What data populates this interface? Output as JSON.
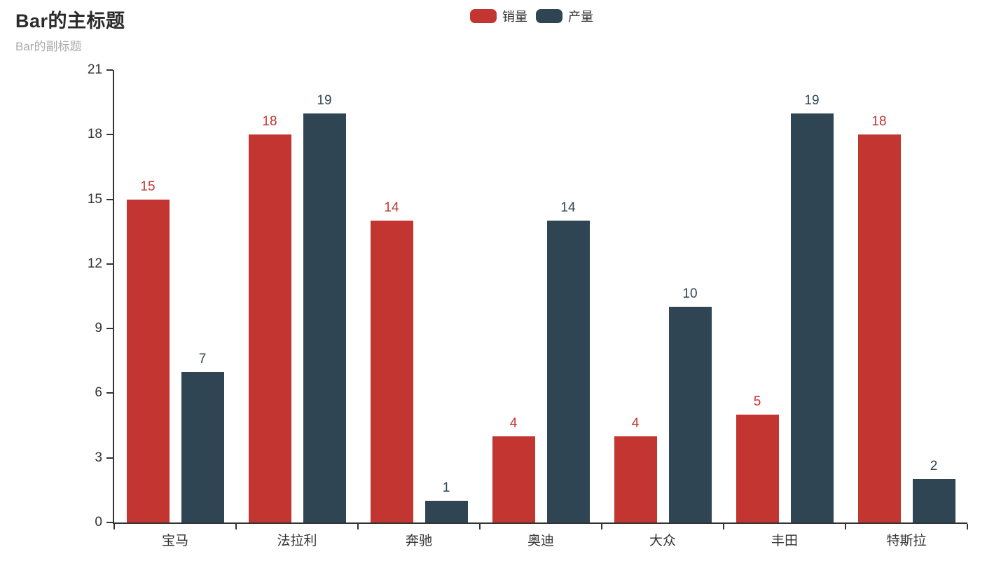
{
  "chart_data": {
    "type": "bar",
    "title": "Bar的主标题",
    "subtitle": "Bar的副标题",
    "categories": [
      "宝马",
      "法拉利",
      "奔驰",
      "奥迪",
      "大众",
      "丰田",
      "特斯拉"
    ],
    "series": [
      {
        "name": "销量",
        "color": "#c23531",
        "values": [
          15,
          18,
          14,
          4,
          4,
          5,
          18
        ]
      },
      {
        "name": "产量",
        "color": "#2f4554",
        "values": [
          7,
          19,
          1,
          14,
          10,
          19,
          2
        ]
      }
    ],
    "ylim": [
      0,
      21
    ],
    "yticks": [
      0,
      3,
      6,
      9,
      12,
      15,
      18,
      21
    ],
    "grid": false,
    "legend_position": "top-center",
    "value_labels": true,
    "axis_color": "#333333",
    "title_color": "#2b2b2b",
    "subtitle_color": "#aaaaaa"
  }
}
